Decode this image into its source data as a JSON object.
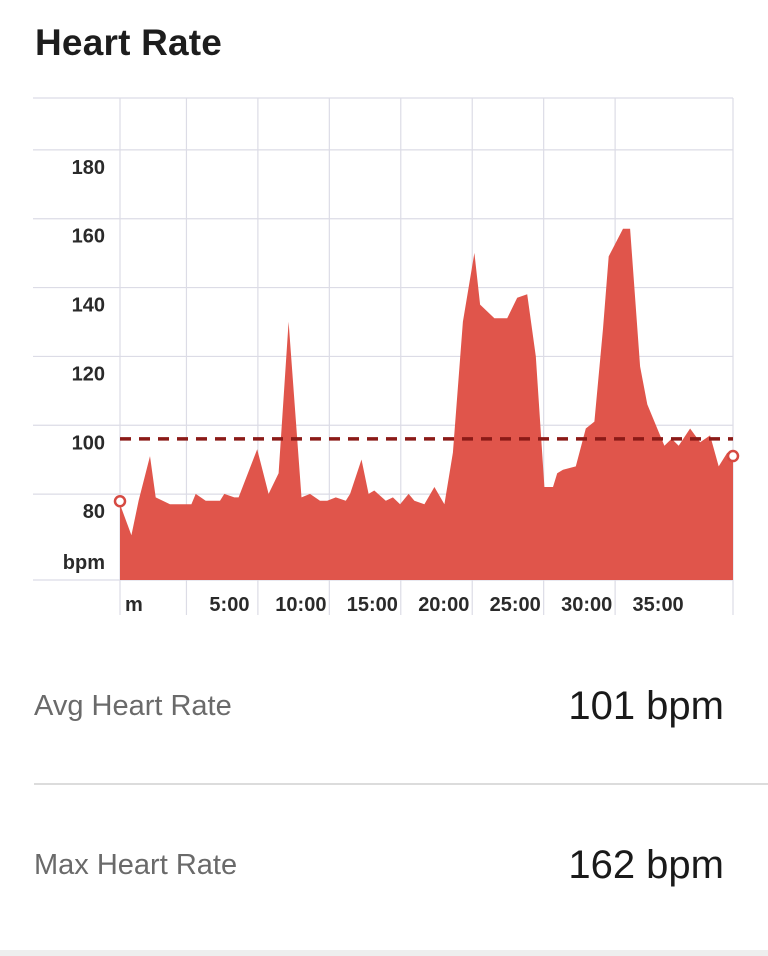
{
  "header": {
    "title": "Heart Rate"
  },
  "stats": [
    {
      "label": "Avg Heart Rate",
      "value": "101 bpm"
    },
    {
      "label": "Max Heart Rate",
      "value": "162 bpm"
    }
  ],
  "colors": {
    "fill": "#e0554b",
    "avg_line": "#8b1a17",
    "grid": "#dcdce6",
    "marker": "#d64a42"
  },
  "chart_data": {
    "type": "area",
    "title": "Heart Rate",
    "ylabel": "bpm",
    "xlabel": "m",
    "ylim": [
      60,
      200
    ],
    "xlim": [
      0,
      42.9
    ],
    "y_ticks": [
      80,
      100,
      120,
      140,
      160,
      180
    ],
    "x_ticks": [
      {
        "value": 5,
        "label": "5:00"
      },
      {
        "value": 10,
        "label": "10:00"
      },
      {
        "value": 15,
        "label": "15:00"
      },
      {
        "value": 20,
        "label": "20:00"
      },
      {
        "value": 25,
        "label": "25:00"
      },
      {
        "value": 30,
        "label": "30:00"
      },
      {
        "value": 35,
        "label": "35:00"
      }
    ],
    "grid": true,
    "avg_line": 101,
    "x": [
      0,
      0.8,
      1.3,
      2.1,
      2.5,
      3.5,
      4.2,
      5.0,
      5.3,
      6.0,
      7.0,
      7.3,
      8.0,
      8.3,
      9.6,
      10.4,
      11.1,
      11.8,
      12.7,
      13.3,
      14.0,
      14.5,
      15.1,
      15.8,
      16.1,
      16.9,
      17.4,
      17.8,
      18.6,
      19.1,
      19.6,
      20.2,
      20.6,
      21.3,
      22.0,
      22.7,
      23.3,
      24.0,
      24.8,
      25.2,
      26.2,
      27.1,
      27.8,
      28.5,
      29.1,
      29.7,
      30.3,
      30.6,
      31.0,
      31.9,
      32.6,
      33.2,
      33.8,
      34.2,
      35.2,
      35.7,
      36.4,
      36.9,
      37.7,
      38.1,
      38.6,
      39.1,
      39.9,
      40.6,
      41.3,
      41.9,
      42.5,
      42.9
    ],
    "series": [
      {
        "values": [
          82,
          73,
          83,
          96,
          84,
          82,
          82,
          82,
          85,
          83,
          83,
          85,
          84,
          84,
          98,
          85,
          91,
          135,
          84,
          85,
          83,
          83,
          84,
          83,
          85,
          95,
          85,
          86,
          83,
          84,
          82,
          85,
          83,
          82,
          87,
          82,
          97,
          135,
          155,
          140,
          136,
          136,
          142,
          143,
          125,
          87,
          87,
          91,
          92,
          93,
          104,
          106,
          133,
          154,
          162,
          162,
          122,
          111,
          103,
          99,
          101,
          99,
          104,
          100,
          102,
          93,
          97,
          96
        ]
      }
    ]
  }
}
